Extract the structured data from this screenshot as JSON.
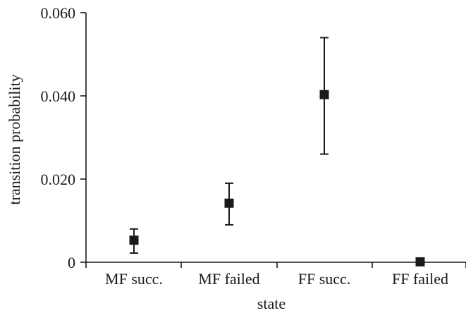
{
  "chart_data": {
    "type": "scatter",
    "title": "",
    "xlabel": "state",
    "ylabel": "transition probability",
    "categories": [
      "MF succ.",
      "MF failed",
      "FF succ.",
      "FF failed"
    ],
    "points": [
      {
        "category": "MF succ.",
        "value": 0.0053,
        "err_low": 0.0022,
        "err_high": 0.008
      },
      {
        "category": "MF failed",
        "value": 0.0142,
        "err_low": 0.009,
        "err_high": 0.019
      },
      {
        "category": "FF succ.",
        "value": 0.0403,
        "err_low": 0.026,
        "err_high": 0.054
      },
      {
        "category": "FF failed",
        "value": 0.0001,
        "err_low": 0.0001,
        "err_high": 0.0001
      }
    ],
    "yticks": [
      0,
      0.02,
      0.04,
      0.06
    ],
    "ytick_labels": [
      "0",
      "0.020",
      "0.040",
      "0.060"
    ],
    "ylim": [
      0,
      0.06
    ],
    "grid": false,
    "marker_color": "#1a1a1a"
  }
}
